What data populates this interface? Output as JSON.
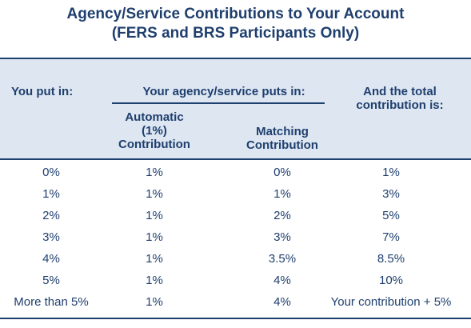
{
  "title": {
    "line1": "Agency/Service Contributions to Your Account",
    "line2": "(FERS and BRS Participants Only)"
  },
  "headers": {
    "you_put_in": "You put in:",
    "agency_puts_in": "Your agency/service puts in:",
    "automatic_line1": "Automatic",
    "automatic_line2": "(1%)",
    "automatic_line3": "Contribution",
    "matching_line1": "Matching",
    "matching_line2": "Contribution",
    "total_line1": "And the total",
    "total_line2": "contribution is:"
  },
  "rows": [
    {
      "you": "0%",
      "automatic": "1%",
      "matching": "0%",
      "total": "1%"
    },
    {
      "you": "1%",
      "automatic": "1%",
      "matching": "1%",
      "total": "3%"
    },
    {
      "you": "2%",
      "automatic": "1%",
      "matching": "2%",
      "total": "5%"
    },
    {
      "you": "3%",
      "automatic": "1%",
      "matching": "3%",
      "total": "7%"
    },
    {
      "you": "4%",
      "automatic": "1%",
      "matching": "3.5%",
      "total": "8.5%"
    },
    {
      "you": "5%",
      "automatic": "1%",
      "matching": "4%",
      "total": "10%"
    },
    {
      "you": "More than 5%",
      "automatic": "1%",
      "matching": "4%",
      "total": "Your contribution + 5%"
    }
  ],
  "colors": {
    "text": "#1f3f6e",
    "header_background": "#dde6f1"
  }
}
